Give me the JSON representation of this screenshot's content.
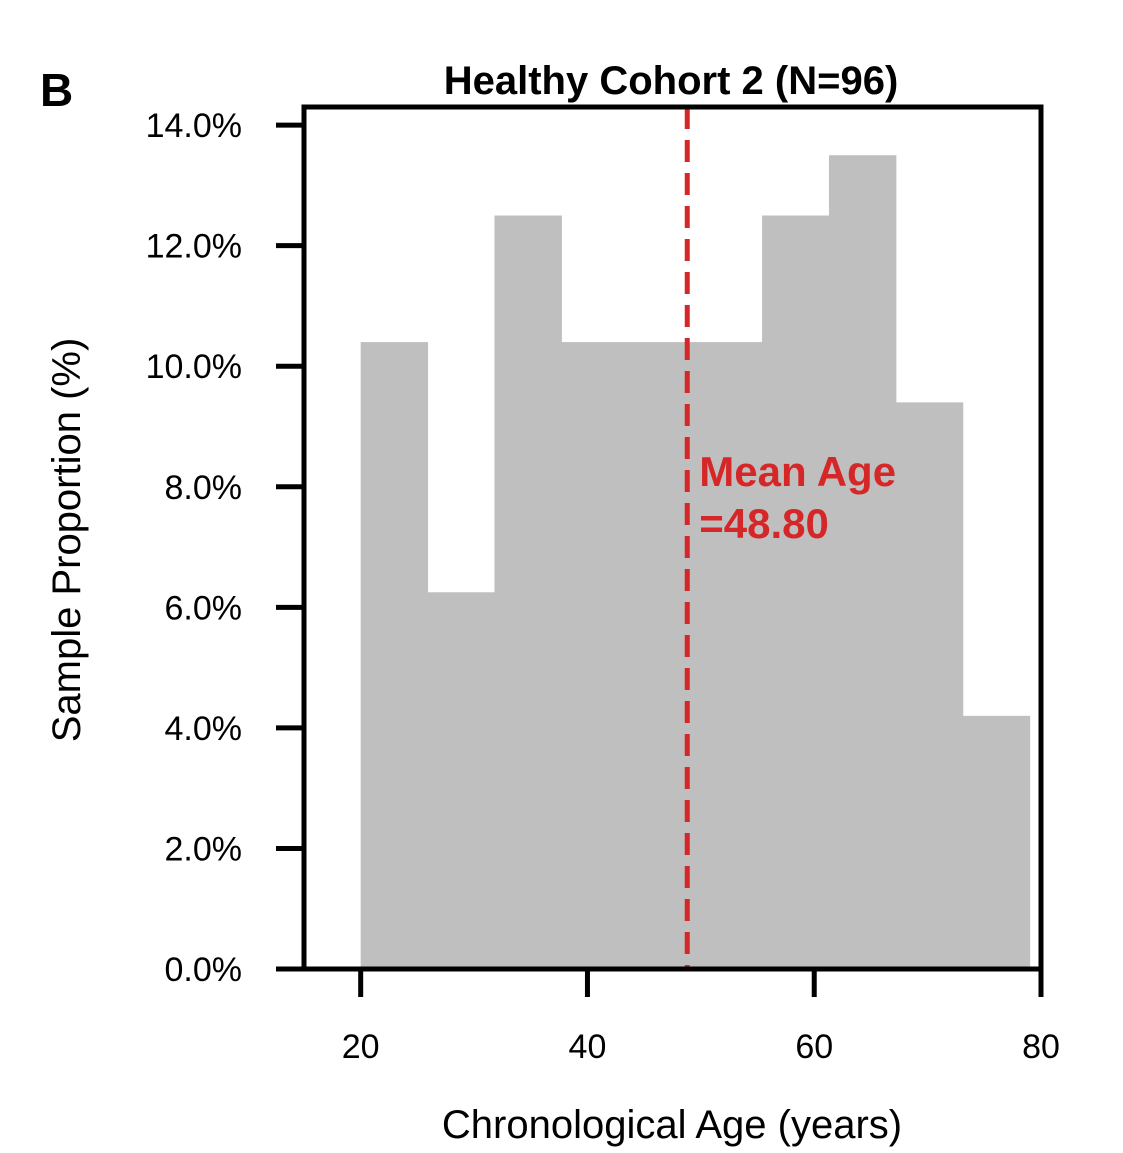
{
  "panel_label": "B",
  "chart_data": {
    "type": "bar",
    "title": "Healthy Cohort 2 (N=96)",
    "xlabel": "Chronological Age (years)",
    "ylabel": "Sample Proportion (%)",
    "xlim": [
      15,
      80
    ],
    "ylim": [
      0,
      14.3
    ],
    "x_ticks": [
      20,
      40,
      60,
      80
    ],
    "x_tick_labels": [
      "20",
      "40",
      "60",
      "80"
    ],
    "y_ticks": [
      0,
      2,
      4,
      6,
      8,
      10,
      12,
      14
    ],
    "y_tick_labels": [
      "0.0%",
      "2.0%",
      "4.0%",
      "6.0%",
      "8.0%",
      "10.0%",
      "12.0%",
      "14.0%"
    ],
    "bin_edges": [
      20,
      25.9,
      31.8,
      37.7,
      43.6,
      49.5,
      55.4,
      61.3,
      67.2,
      73.1,
      79
    ],
    "values": [
      10.4,
      6.25,
      12.5,
      10.4,
      10.4,
      10.4,
      12.5,
      13.5,
      9.4,
      4.2
    ],
    "bar_color": "#bfbfbf",
    "grid": false,
    "legend": "none",
    "mean_line": {
      "value": 48.8,
      "color": "#d62728",
      "style": "dashed",
      "label_line1": "Mean Age",
      "label_line2": "=48.80"
    }
  }
}
